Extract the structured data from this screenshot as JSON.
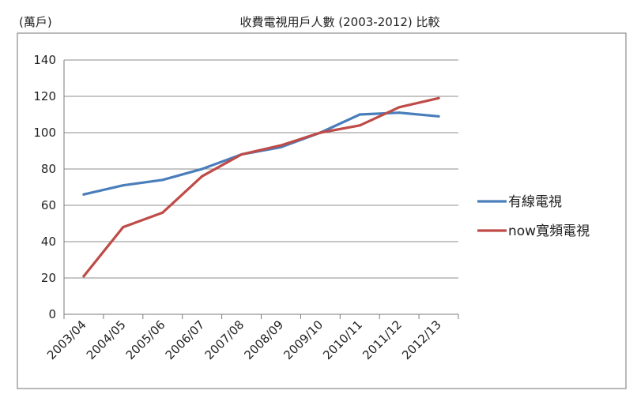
{
  "chart_data": {
    "type": "line",
    "title": "收費電視用戶人數 (2003-2012) 比較",
    "ylabel": "(萬戶)",
    "xlabel": "",
    "categories": [
      "2003/04",
      "2004/05",
      "2005/06",
      "2006/07",
      "2007/08",
      "2008/09",
      "2009/10",
      "2010/11",
      "2011/12",
      "2012/13"
    ],
    "yticks": [
      0,
      20,
      40,
      60,
      80,
      100,
      120,
      140
    ],
    "ylim": [
      0,
      140
    ],
    "grid": "horizontal",
    "legend_position": "right",
    "series": [
      {
        "name": "有線電視",
        "color": "#4a7ebb",
        "values": [
          66,
          71,
          74,
          80,
          88,
          92,
          100,
          110,
          111,
          109
        ]
      },
      {
        "name": "now寬頻電視",
        "color": "#be4b48",
        "values": [
          21,
          48,
          56,
          76,
          88,
          93,
          100,
          104,
          114,
          119
        ]
      }
    ]
  }
}
